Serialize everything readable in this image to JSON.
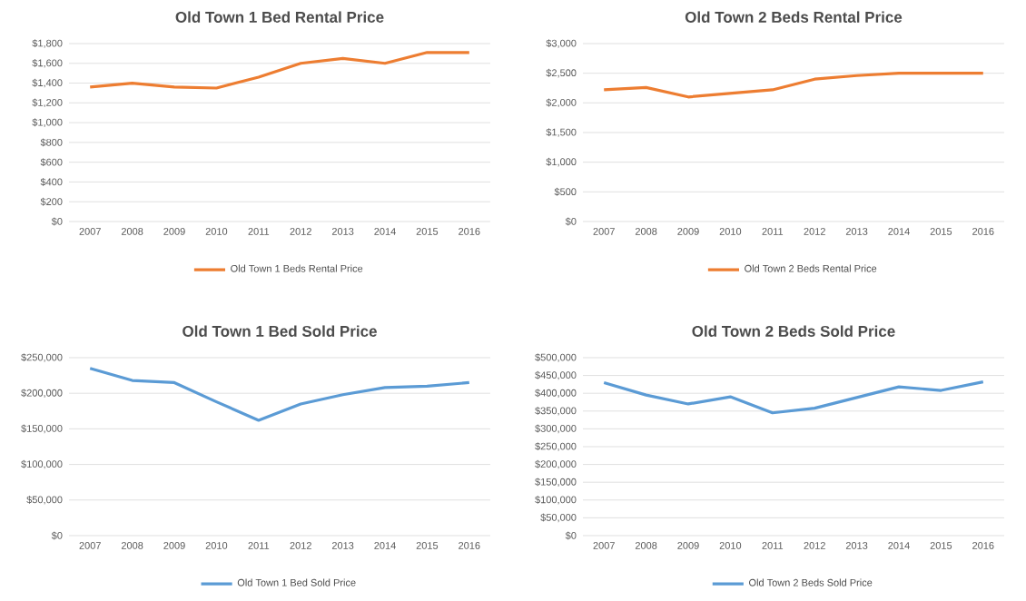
{
  "chart_data": [
    {
      "type": "line",
      "title": "Old Town 1 Bed Rental Price",
      "categories": [
        "2007",
        "2008",
        "2009",
        "2010",
        "2011",
        "2012",
        "2013",
        "2014",
        "2015",
        "2016"
      ],
      "series": [
        {
          "name": "Old Town 1 Beds Rental Price",
          "color": "#ed7d31",
          "values": [
            1360,
            1400,
            1360,
            1350,
            1460,
            1600,
            1650,
            1600,
            1710,
            1710
          ]
        }
      ],
      "ylim": [
        0,
        1800
      ],
      "yticks": [
        {
          "value": 0,
          "label": "$0"
        },
        {
          "value": 200,
          "label": "$200"
        },
        {
          "value": 400,
          "label": "$400"
        },
        {
          "value": 600,
          "label": "$600"
        },
        {
          "value": 800,
          "label": "$800"
        },
        {
          "value": 1000,
          "label": "$1,000"
        },
        {
          "value": 1200,
          "label": "$1,200"
        },
        {
          "value": 1400,
          "label": "$1,400"
        },
        {
          "value": 1600,
          "label": "$1,600"
        },
        {
          "value": 1800,
          "label": "$1,800"
        }
      ],
      "grid": "y",
      "legend": "bottom",
      "marker": "none",
      "line_style": "solid"
    },
    {
      "type": "line",
      "title": "Old Town 2 Beds Rental Price",
      "categories": [
        "2007",
        "2008",
        "2009",
        "2010",
        "2011",
        "2012",
        "2013",
        "2014",
        "2015",
        "2016"
      ],
      "series": [
        {
          "name": "Old Town 2 Beds Rental Price",
          "color": "#ed7d31",
          "values": [
            2220,
            2260,
            2100,
            2160,
            2220,
            2400,
            2460,
            2500,
            2500,
            2500
          ]
        }
      ],
      "ylim": [
        0,
        3000
      ],
      "yticks": [
        {
          "value": 0,
          "label": "$0"
        },
        {
          "value": 500,
          "label": "$500"
        },
        {
          "value": 1000,
          "label": "$1,000"
        },
        {
          "value": 1500,
          "label": "$1,500"
        },
        {
          "value": 2000,
          "label": "$2,000"
        },
        {
          "value": 2500,
          "label": "$2,500"
        },
        {
          "value": 3000,
          "label": "$3,000"
        }
      ],
      "grid": "y",
      "legend": "bottom",
      "marker": "none",
      "line_style": "solid"
    },
    {
      "type": "line",
      "title": "Old Town 1 Bed Sold Price",
      "categories": [
        "2007",
        "2008",
        "2009",
        "2010",
        "2011",
        "2012",
        "2013",
        "2014",
        "2015",
        "2016"
      ],
      "series": [
        {
          "name": "Old Town 1 Bed Sold Price",
          "color": "#5b9bd5",
          "values": [
            235000,
            218000,
            215000,
            188000,
            162000,
            185000,
            198000,
            208000,
            210000,
            215000
          ]
        }
      ],
      "ylim": [
        0,
        250000
      ],
      "yticks": [
        {
          "value": 0,
          "label": "$0"
        },
        {
          "value": 50000,
          "label": "$50,000"
        },
        {
          "value": 100000,
          "label": "$100,000"
        },
        {
          "value": 150000,
          "label": "$150,000"
        },
        {
          "value": 200000,
          "label": "$200,000"
        },
        {
          "value": 250000,
          "label": "$250,000"
        }
      ],
      "grid": "y",
      "legend": "bottom",
      "marker": "none",
      "line_style": "solid"
    },
    {
      "type": "line",
      "title": "Old Town 2 Beds Sold Price",
      "categories": [
        "2007",
        "2008",
        "2009",
        "2010",
        "2011",
        "2012",
        "2013",
        "2014",
        "2015",
        "2016"
      ],
      "series": [
        {
          "name": "Old Town 2 Beds Sold Price",
          "color": "#5b9bd5",
          "values": [
            430000,
            395000,
            370000,
            390000,
            345000,
            358000,
            388000,
            418000,
            408000,
            432000
          ]
        }
      ],
      "ylim": [
        0,
        500000
      ],
      "yticks": [
        {
          "value": 0,
          "label": "$0"
        },
        {
          "value": 50000,
          "label": "$50,000"
        },
        {
          "value": 100000,
          "label": "$100,000"
        },
        {
          "value": 150000,
          "label": "$150,000"
        },
        {
          "value": 200000,
          "label": "$200,000"
        },
        {
          "value": 250000,
          "label": "$250,000"
        },
        {
          "value": 300000,
          "label": "$300,000"
        },
        {
          "value": 350000,
          "label": "$350,000"
        },
        {
          "value": 400000,
          "label": "$400,000"
        },
        {
          "value": 450000,
          "label": "$450,000"
        },
        {
          "value": 500000,
          "label": "$500,000"
        }
      ],
      "grid": "y",
      "legend": "bottom",
      "marker": "none",
      "line_style": "solid"
    }
  ]
}
